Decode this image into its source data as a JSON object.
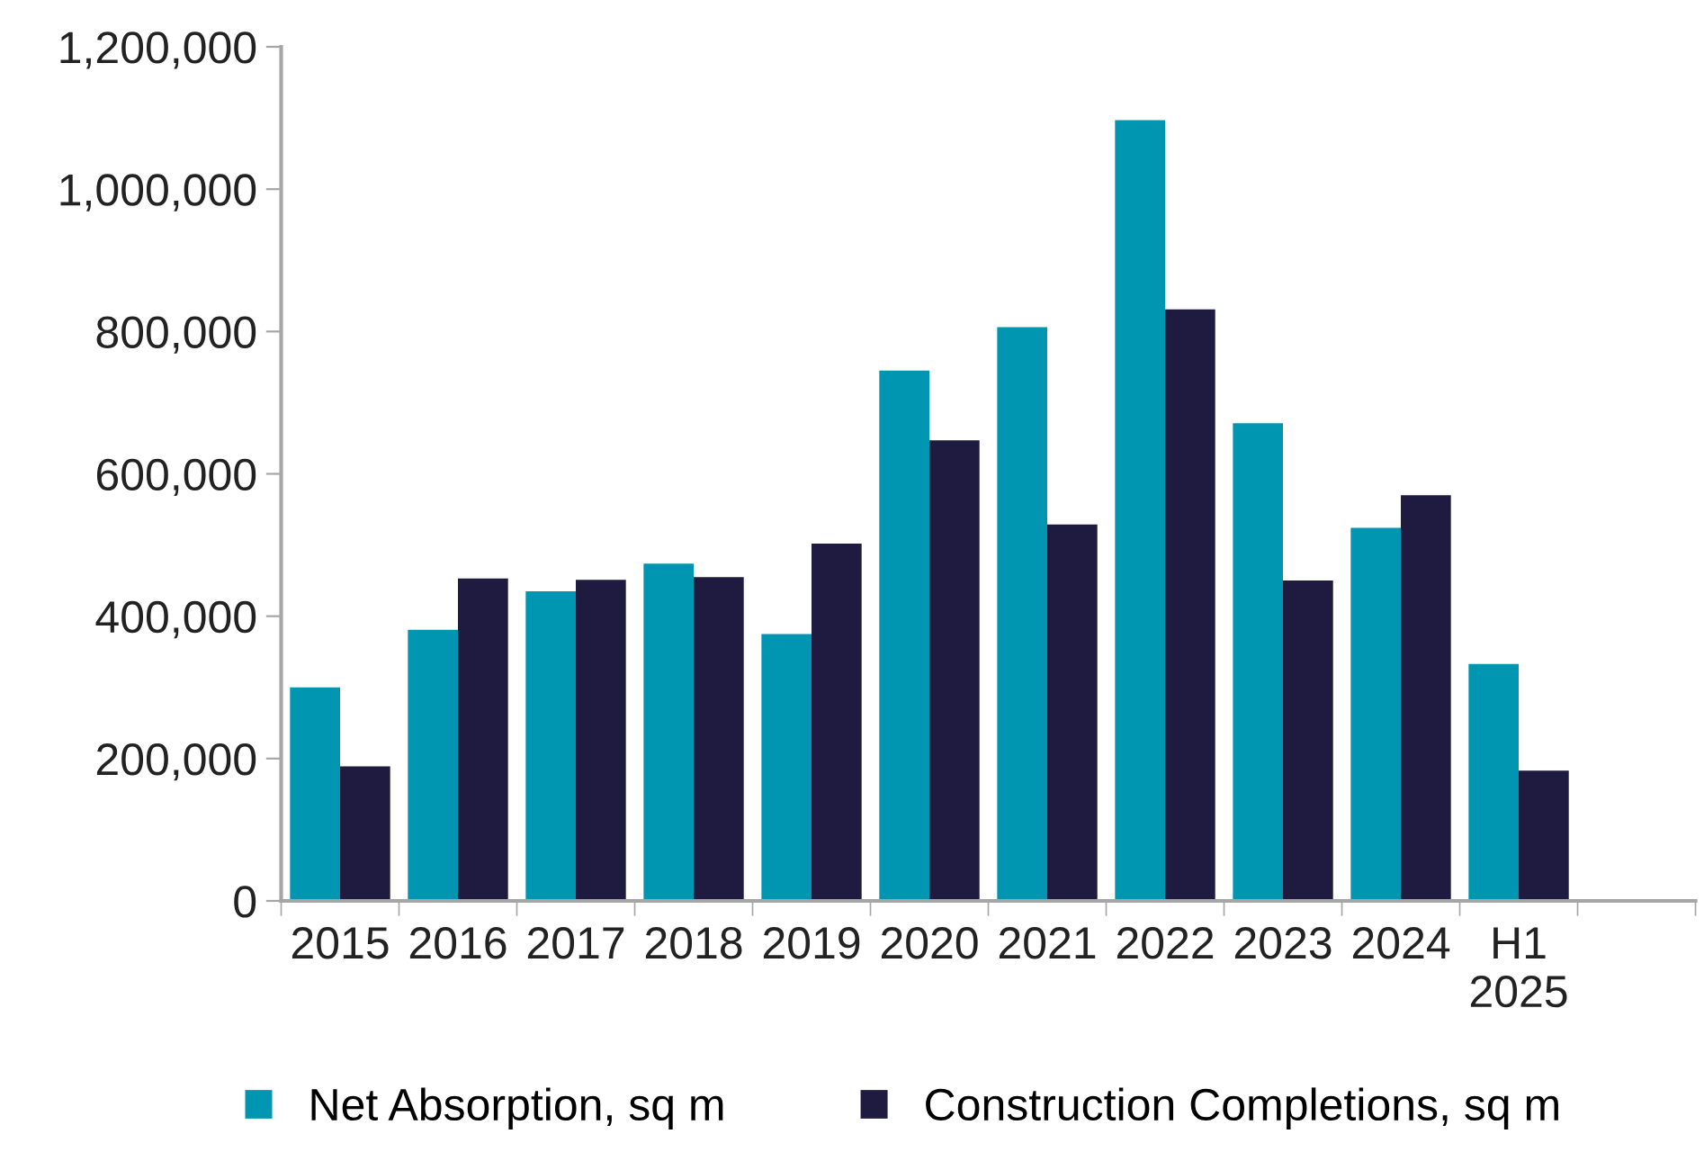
{
  "chart_data": {
    "type": "bar",
    "categories": [
      "2015",
      "2016",
      "2017",
      "2018",
      "2019",
      "2020",
      "2021",
      "2022",
      "2023",
      "2024",
      "H1\n2025",
      null
    ],
    "series": [
      {
        "name": "Net Absorption, sq m",
        "color": "#0095b0",
        "values": [
          300000,
          381000,
          435000,
          474000,
          375000,
          745000,
          806000,
          1097000,
          671000,
          524000,
          333000,
          null
        ]
      },
      {
        "name": "Construction Completions, sq m",
        "color": "#1f1a40",
        "values": [
          189000,
          453000,
          451000,
          455000,
          502000,
          647000,
          529000,
          831000,
          450000,
          570000,
          183000,
          null
        ]
      }
    ],
    "ylim": [
      0,
      1200000
    ],
    "yticks": [
      {
        "value": 0,
        "label": "0"
      },
      {
        "value": 200000,
        "label": "200,000"
      },
      {
        "value": 400000,
        "label": "400,000"
      },
      {
        "value": 600000,
        "label": "600,000"
      },
      {
        "value": 800000,
        "label": "800,000"
      },
      {
        "value": 1000000,
        "label": "1,000,000"
      },
      {
        "value": 1200000,
        "label": "1,200,000"
      }
    ],
    "grid": false,
    "legend": "bottom"
  }
}
